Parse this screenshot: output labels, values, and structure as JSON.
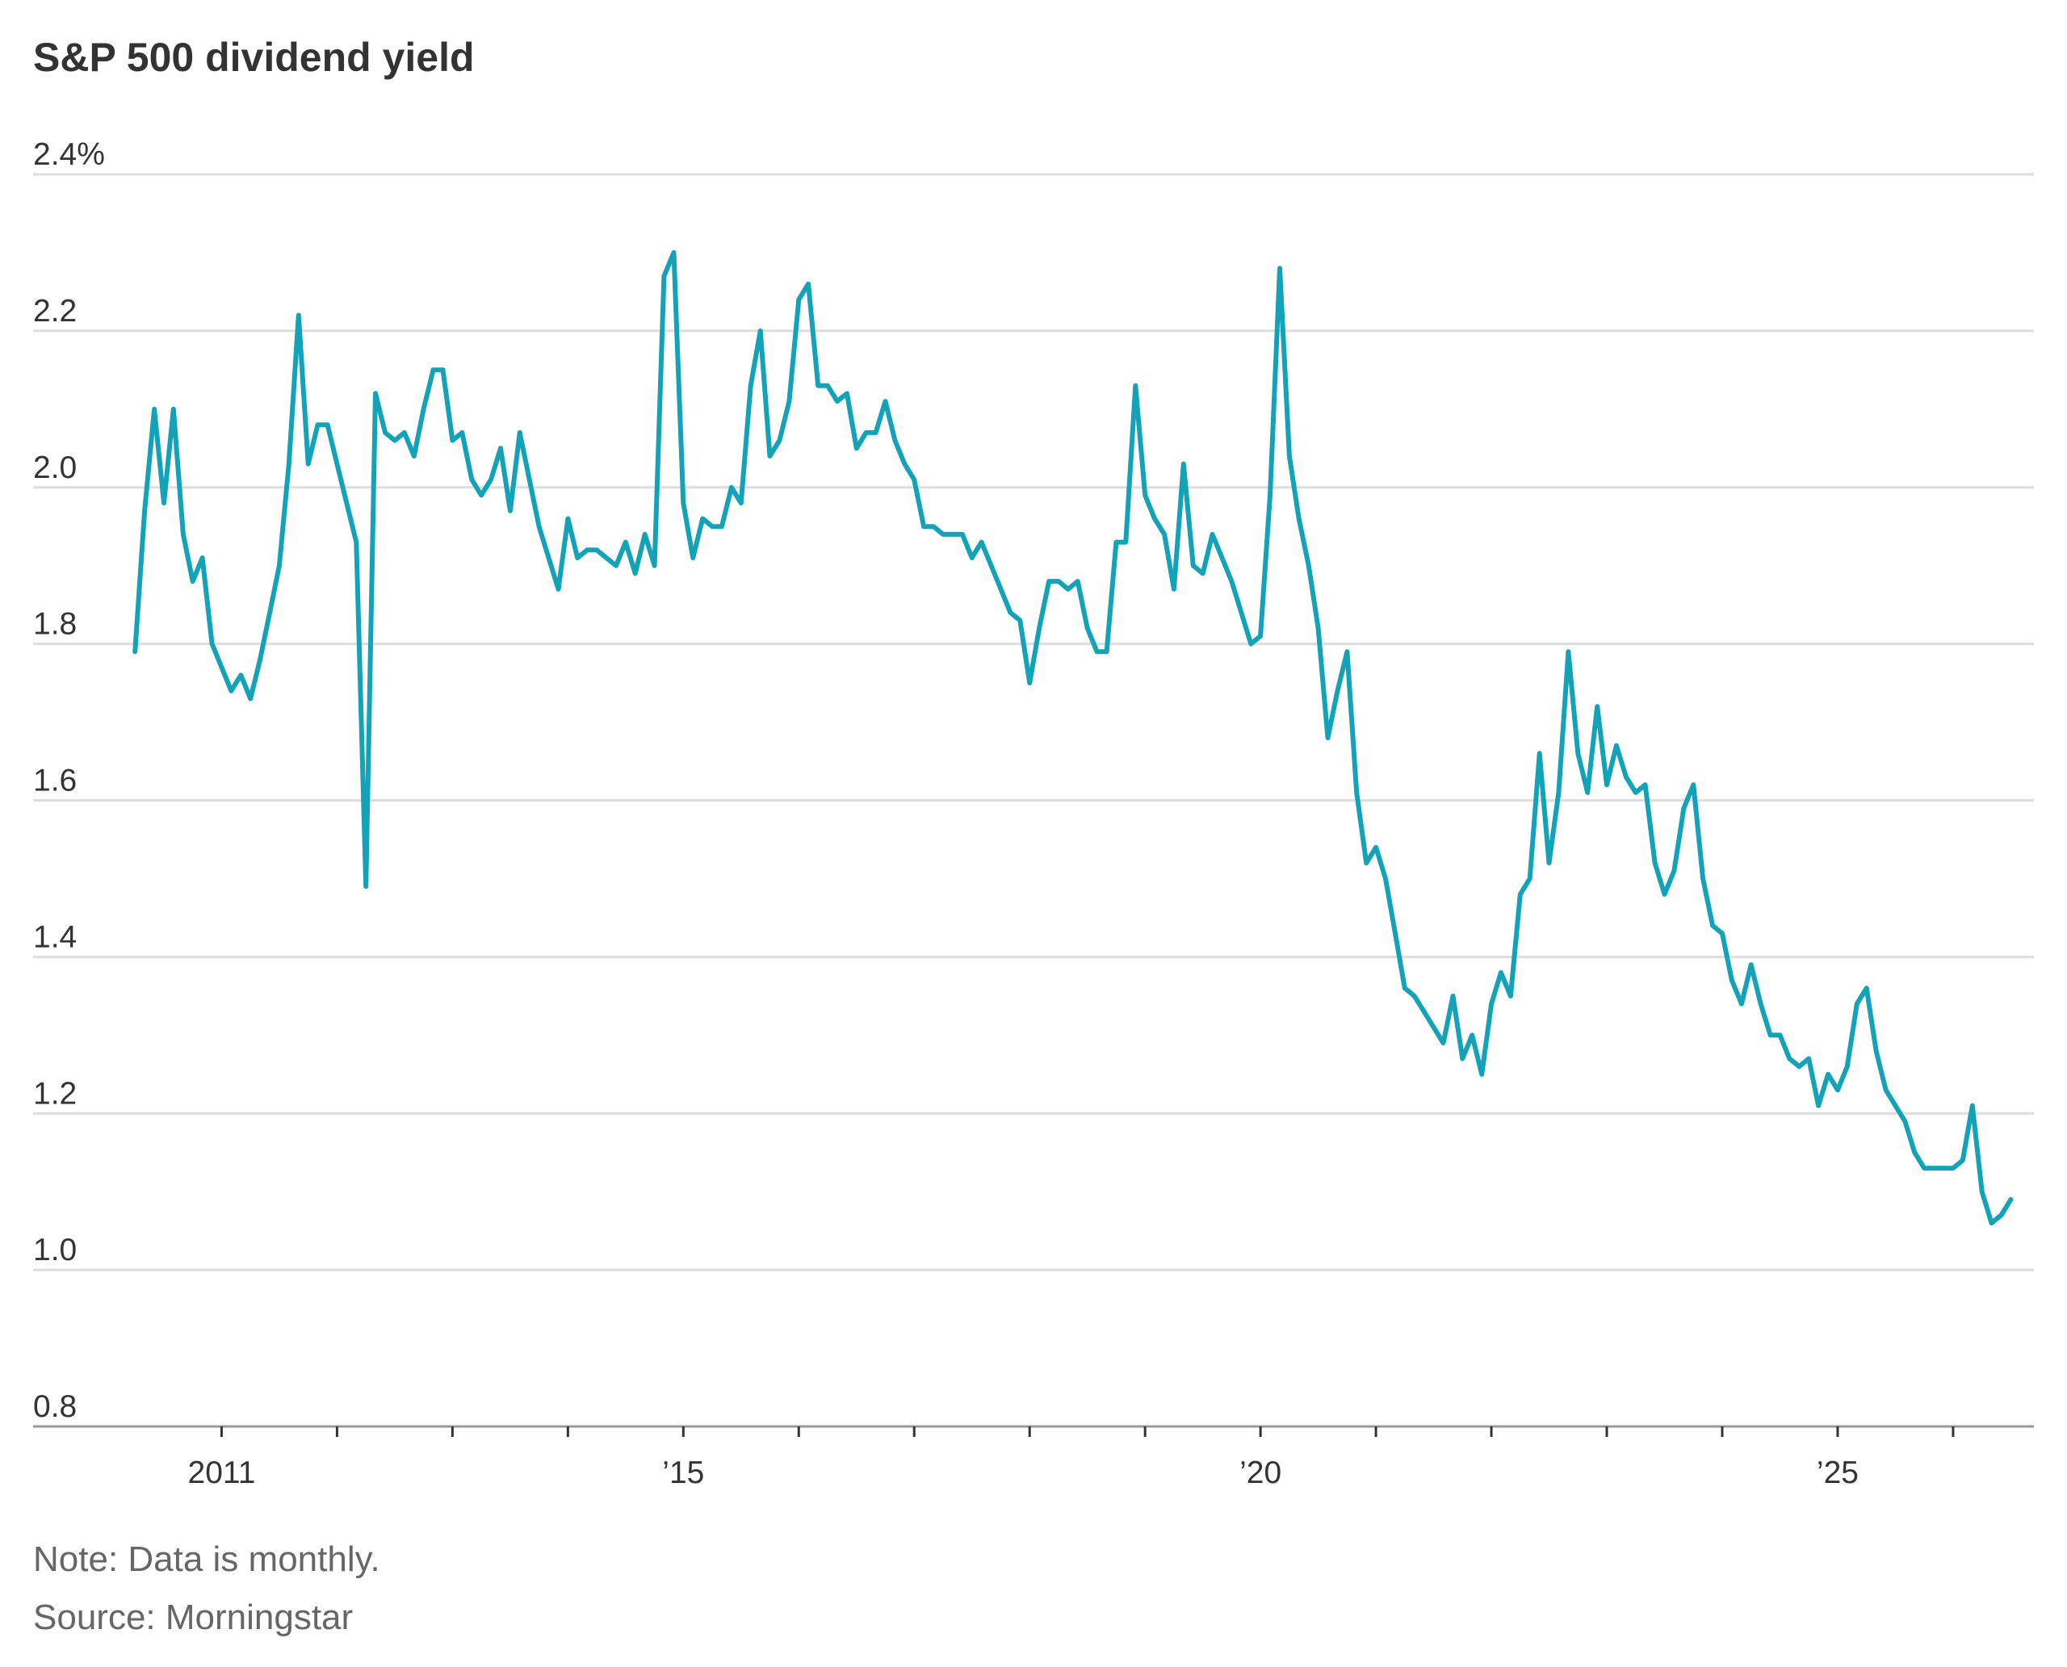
{
  "chart_data": {
    "type": "line",
    "title": "S&P 500 dividend yield",
    "note": "Note: Data is monthly.",
    "source": "Source: Morningstar",
    "color": "#13a3b8",
    "xlim": [
      2009.367,
      2026.7
    ],
    "xticks": [
      {
        "value": 2011,
        "label": "2011"
      },
      {
        "value": 2012,
        "label": null
      },
      {
        "value": 2013,
        "label": null
      },
      {
        "value": 2014,
        "label": null
      },
      {
        "value": 2015,
        "label": "’15"
      },
      {
        "value": 2016,
        "label": null
      },
      {
        "value": 2017,
        "label": null
      },
      {
        "value": 2018,
        "label": null
      },
      {
        "value": 2019,
        "label": null
      },
      {
        "value": 2020,
        "label": "’20"
      },
      {
        "value": 2021,
        "label": null
      },
      {
        "value": 2022,
        "label": null
      },
      {
        "value": 2023,
        "label": null
      },
      {
        "value": 2024,
        "label": null
      },
      {
        "value": 2025,
        "label": "’25"
      },
      {
        "value": 2026,
        "label": null
      }
    ],
    "ylim": [
      0.8,
      2.4
    ],
    "yticks": [
      0.8,
      {
        "value": 1,
        "label": "1.0"
      },
      1.2,
      1.4,
      1.6,
      1.8,
      {
        "value": 2,
        "label": "2.0"
      },
      2.2,
      {
        "value": 2.4,
        "label": "2.4%"
      }
    ],
    "grid": true,
    "x": [
      2010.25,
      2010.333,
      2010.417,
      2010.5,
      2010.583,
      2010.667,
      2010.75,
      2010.833,
      2010.917,
      2011,
      2011.083,
      2011.167,
      2011.25,
      2011.333,
      2011.417,
      2011.5,
      2011.583,
      2011.667,
      2011.75,
      2011.833,
      2011.917,
      2012,
      2012.083,
      2012.167,
      2012.25,
      2012.333,
      2012.417,
      2012.5,
      2012.583,
      2012.667,
      2012.75,
      2012.833,
      2012.917,
      2013,
      2013.083,
      2013.167,
      2013.25,
      2013.333,
      2013.417,
      2013.5,
      2013.583,
      2013.667,
      2013.75,
      2013.833,
      2013.917,
      2014,
      2014.083,
      2014.167,
      2014.25,
      2014.333,
      2014.417,
      2014.5,
      2014.583,
      2014.667,
      2014.75,
      2014.833,
      2014.917,
      2015,
      2015.083,
      2015.167,
      2015.25,
      2015.333,
      2015.417,
      2015.5,
      2015.583,
      2015.667,
      2015.75,
      2015.833,
      2015.917,
      2016,
      2016.083,
      2016.167,
      2016.25,
      2016.333,
      2016.417,
      2016.5,
      2016.583,
      2016.667,
      2016.75,
      2016.833,
      2016.917,
      2017,
      2017.083,
      2017.167,
      2017.25,
      2017.333,
      2017.417,
      2017.5,
      2017.583,
      2017.667,
      2017.75,
      2017.833,
      2017.917,
      2018,
      2018.083,
      2018.167,
      2018.25,
      2018.333,
      2018.417,
      2018.5,
      2018.583,
      2018.667,
      2018.75,
      2018.833,
      2018.917,
      2019,
      2019.083,
      2019.167,
      2019.25,
      2019.333,
      2019.417,
      2019.5,
      2019.583,
      2019.667,
      2019.75,
      2019.833,
      2019.917,
      2020,
      2020.083,
      2020.167,
      2020.25,
      2020.333,
      2020.417,
      2020.5,
      2020.583,
      2020.667,
      2020.75,
      2020.833,
      2020.917,
      2021,
      2021.083,
      2021.167,
      2021.25,
      2021.333,
      2021.417,
      2021.5,
      2021.583,
      2021.667,
      2021.75,
      2021.833,
      2021.917,
      2022,
      2022.083,
      2022.167,
      2022.25,
      2022.333,
      2022.417,
      2022.5,
      2022.583,
      2022.667,
      2022.75,
      2022.833,
      2022.917,
      2023,
      2023.083,
      2023.167,
      2023.25,
      2023.333,
      2023.417,
      2023.5,
      2023.583,
      2023.667,
      2023.75,
      2023.833,
      2023.917,
      2024,
      2024.083,
      2024.167,
      2024.25,
      2024.333,
      2024.417,
      2024.5,
      2024.583,
      2024.667,
      2024.75,
      2024.833,
      2024.917,
      2025,
      2025.083,
      2025.167,
      2025.25,
      2025.333,
      2025.417,
      2025.5,
      2025.583,
      2025.667,
      2025.75,
      2025.833,
      2025.917,
      2026,
      2026.083,
      2026.167,
      2026.25,
      2026.333,
      2026.417,
      2026.5
    ],
    "values": [
      1.79,
      1.97,
      2.1,
      1.98,
      2.1,
      1.94,
      1.88,
      1.91,
      1.8,
      1.77,
      1.74,
      1.76,
      1.73,
      1.78,
      1.84,
      1.9,
      2.03,
      2.22,
      2.03,
      2.08,
      2.08,
      2.03,
      1.98,
      1.93,
      1.49,
      2.12,
      2.07,
      2.06,
      2.07,
      2.04,
      2.1,
      2.15,
      2.15,
      2.06,
      2.07,
      2.01,
      1.99,
      2.01,
      2.05,
      1.97,
      2.07,
      2.01,
      1.95,
      1.91,
      1.87,
      1.96,
      1.91,
      1.92,
      1.92,
      1.91,
      1.9,
      1.93,
      1.89,
      1.94,
      1.9,
      2.27,
      2.3,
      1.98,
      1.91,
      1.96,
      1.95,
      1.95,
      2.0,
      1.98,
      2.13,
      2.2,
      2.04,
      2.06,
      2.11,
      2.24,
      2.26,
      2.13,
      2.13,
      2.11,
      2.12,
      2.05,
      2.07,
      2.07,
      2.11,
      2.06,
      2.03,
      2.01,
      1.95,
      1.95,
      1.94,
      1.94,
      1.94,
      1.91,
      1.93,
      1.9,
      1.87,
      1.84,
      1.83,
      1.75,
      1.82,
      1.88,
      1.88,
      1.87,
      1.88,
      1.82,
      1.79,
      1.79,
      1.93,
      1.93,
      2.13,
      1.99,
      1.96,
      1.94,
      1.87,
      2.03,
      1.9,
      1.89,
      1.94,
      1.91,
      1.88,
      1.84,
      1.8,
      1.81,
      1.99,
      2.28,
      2.04,
      1.96,
      1.9,
      1.82,
      1.68,
      1.74,
      1.79,
      1.61,
      1.52,
      1.54,
      1.5,
      1.43,
      1.36,
      1.35,
      1.33,
      1.31,
      1.29,
      1.35,
      1.27,
      1.3,
      1.25,
      1.34,
      1.38,
      1.35,
      1.48,
      1.5,
      1.66,
      1.52,
      1.61,
      1.79,
      1.66,
      1.61,
      1.72,
      1.62,
      1.67,
      1.63,
      1.61,
      1.62,
      1.52,
      1.48,
      1.51,
      1.59,
      1.62,
      1.5,
      1.44,
      1.43,
      1.37,
      1.34,
      1.39,
      1.34,
      1.3,
      1.3,
      1.27,
      1.26,
      1.27,
      1.21,
      1.25,
      1.23,
      1.26,
      1.34,
      1.36,
      1.28,
      1.23,
      1.21,
      1.19,
      1.15,
      1.13,
      1.13,
      1.13,
      1.13,
      1.14,
      1.21,
      1.1,
      1.06,
      1.07,
      1.09
    ]
  }
}
